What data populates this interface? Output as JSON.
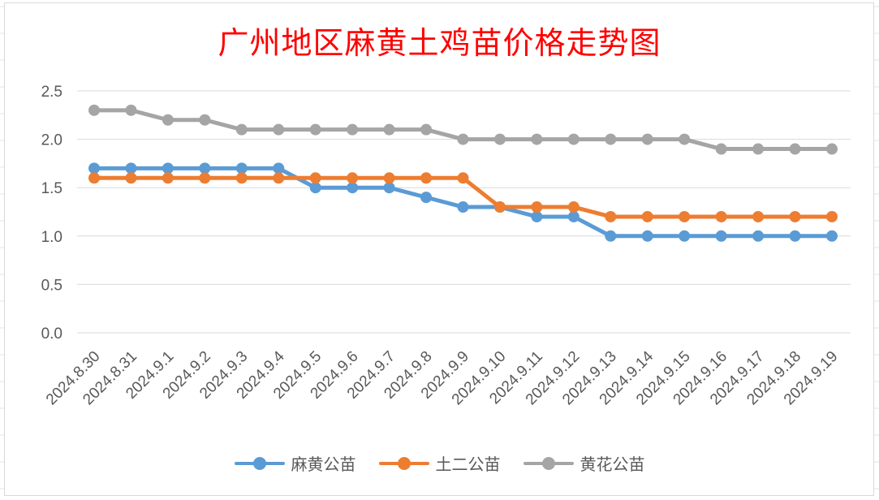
{
  "chart_data": {
    "type": "line",
    "title": "广州地区麻黄土鸡苗价格走势图",
    "categories": [
      "2024.8.30",
      "2024.8.31",
      "2024.9.1",
      "2024.9.2",
      "2024.9.3",
      "2024.9.4",
      "2024.9.5",
      "2024.9.6",
      "2024.9.7",
      "2024.9.8",
      "2024.9.9",
      "2024.9.10",
      "2024.9.11",
      "2024.9.12",
      "2024.9.13",
      "2024.9.14",
      "2024.9.15",
      "2024.9.16",
      "2024.9.17",
      "2024.9.18",
      "2024.9.19"
    ],
    "yticks": [
      "0.0",
      "0.5",
      "1.0",
      "1.5",
      "2.0",
      "2.5"
    ],
    "ylim": [
      0,
      2.5
    ],
    "grid": true,
    "legend_position": "bottom",
    "series": [
      {
        "name": "麻黄公苗",
        "color": "#5b9bd5",
        "values": [
          1.7,
          1.7,
          1.7,
          1.7,
          1.7,
          1.7,
          1.5,
          1.5,
          1.5,
          1.4,
          1.3,
          1.3,
          1.2,
          1.2,
          1.0,
          1.0,
          1.0,
          1.0,
          1.0,
          1.0,
          1.0
        ]
      },
      {
        "name": "土二公苗",
        "color": "#ed7d31",
        "values": [
          1.6,
          1.6,
          1.6,
          1.6,
          1.6,
          1.6,
          1.6,
          1.6,
          1.6,
          1.6,
          1.6,
          1.3,
          1.3,
          1.3,
          1.2,
          1.2,
          1.2,
          1.2,
          1.2,
          1.2,
          1.2
        ]
      },
      {
        "name": "黄花公苗",
        "color": "#a5a5a5",
        "values": [
          2.3,
          2.3,
          2.2,
          2.2,
          2.1,
          2.1,
          2.1,
          2.1,
          2.1,
          2.1,
          2.0,
          2.0,
          2.0,
          2.0,
          2.0,
          2.0,
          2.0,
          1.9,
          1.9,
          1.9,
          1.9
        ]
      }
    ]
  }
}
